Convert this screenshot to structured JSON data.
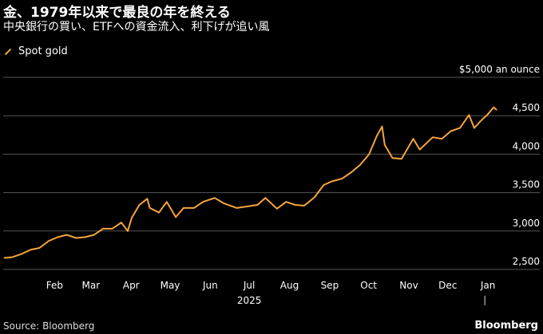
{
  "header": {
    "title": "金、1979年以来で最良の年を終える",
    "subtitle": "中央銀行の買い、ETFへの資金流入、利下げが追い風"
  },
  "footer": {
    "source": "Source: Bloomberg",
    "brand": "Bloomberg"
  },
  "chart_data": {
    "type": "line",
    "title": "金、1979年以来で最良の年を終える",
    "subtitle": "中央銀行の買い、ETFへの資金流入、利下げが追い風",
    "y_unit_label": "$5,000 an ounce",
    "ylim": [
      2500,
      5000
    ],
    "y_ticks": [
      {
        "value": 2500,
        "label": "2,500"
      },
      {
        "value": 3000,
        "label": "3,000"
      },
      {
        "value": 3500,
        "label": "3,500"
      },
      {
        "value": 4000,
        "label": "4,000"
      },
      {
        "value": 4500,
        "label": "4,500"
      },
      {
        "value": 5000,
        "label": "$5,000 an ounce"
      }
    ],
    "x_ticks": [
      "Feb",
      "Mar",
      "Apr",
      "May",
      "Jun",
      "Jul",
      "Aug",
      "Sep",
      "Oct",
      "Nov",
      "Dec",
      "Jan"
    ],
    "x_year_label": "2025",
    "grid": true,
    "legend_position": "top-left",
    "colors": {
      "series": "#f5a53c",
      "grid": "#555555",
      "background": "#000000"
    },
    "series": [
      {
        "name": "Spot gold",
        "x": [
          "2025-01-02",
          "2025-01-08",
          "2025-01-15",
          "2025-01-22",
          "2025-01-29",
          "2025-02-05",
          "2025-02-12",
          "2025-02-19",
          "2025-02-26",
          "2025-03-05",
          "2025-03-12",
          "2025-03-19",
          "2025-03-26",
          "2025-04-02",
          "2025-04-07",
          "2025-04-10",
          "2025-04-16",
          "2025-04-22",
          "2025-04-24",
          "2025-05-01",
          "2025-05-07",
          "2025-05-14",
          "2025-05-20",
          "2025-05-28",
          "2025-06-04",
          "2025-06-13",
          "2025-06-20",
          "2025-06-30",
          "2025-07-08",
          "2025-07-16",
          "2025-07-22",
          "2025-07-31",
          "2025-08-07",
          "2025-08-14",
          "2025-08-21",
          "2025-08-29",
          "2025-09-05",
          "2025-09-12",
          "2025-09-19",
          "2025-09-26",
          "2025-10-03",
          "2025-10-10",
          "2025-10-16",
          "2025-10-20",
          "2025-10-22",
          "2025-10-28",
          "2025-11-04",
          "2025-11-13",
          "2025-11-18",
          "2025-11-28",
          "2025-12-05",
          "2025-12-12",
          "2025-12-19",
          "2025-12-26",
          "2025-12-30",
          "2026-01-05",
          "2026-01-09",
          "2026-01-14",
          "2026-01-16"
        ],
        "values": [
          2650,
          2660,
          2700,
          2755,
          2780,
          2870,
          2920,
          2950,
          2910,
          2920,
          2950,
          3030,
          3030,
          3110,
          3000,
          3170,
          3340,
          3420,
          3300,
          3240,
          3380,
          3180,
          3300,
          3300,
          3380,
          3430,
          3360,
          3300,
          3320,
          3340,
          3430,
          3290,
          3380,
          3340,
          3330,
          3440,
          3600,
          3650,
          3680,
          3760,
          3860,
          4000,
          4240,
          4360,
          4120,
          3950,
          3940,
          4200,
          4060,
          4220,
          4200,
          4300,
          4340,
          4510,
          4340,
          4450,
          4510,
          4610,
          4580
        ]
      }
    ]
  }
}
